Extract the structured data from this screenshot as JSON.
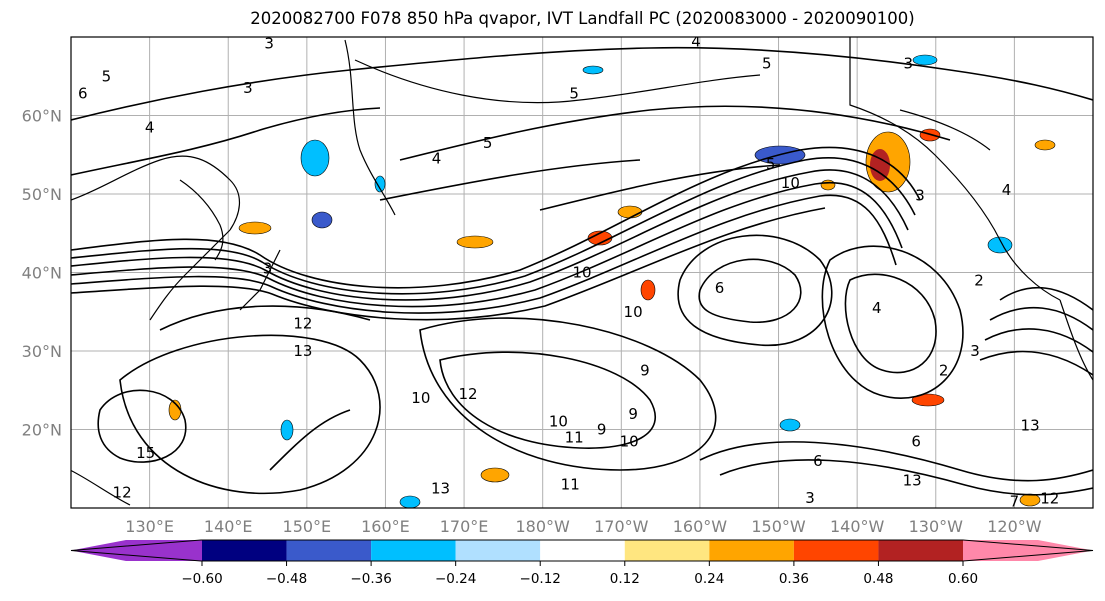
{
  "title": "2020082700 F078 850 hPa qvapor, IVT Landfall PC (2020083000 - 2020090100)",
  "map": {
    "lon_labels": [
      "130°E",
      "140°E",
      "150°E",
      "160°E",
      "170°E",
      "180°W",
      "170°W",
      "160°W",
      "150°W",
      "140°W",
      "130°W",
      "120°W"
    ],
    "lat_labels": [
      "60°N",
      "50°N",
      "40°N",
      "30°N",
      "20°N"
    ],
    "grid": true,
    "contour_labels": [
      {
        "text": "3",
        "lon": 145.2,
        "lat": 69.2
      },
      {
        "text": "4",
        "lon": -160.5,
        "lat": 69.4
      },
      {
        "text": "5",
        "lon": -151.5,
        "lat": 66.6
      },
      {
        "text": "3",
        "lon": -133.5,
        "lat": 66.6
      },
      {
        "text": "5",
        "lon": 124.5,
        "lat": 65.0
      },
      {
        "text": "6",
        "lon": 121.5,
        "lat": 62.8
      },
      {
        "text": "3",
        "lon": 142.5,
        "lat": 63.5
      },
      {
        "text": "5",
        "lon": -176,
        "lat": 62.8
      },
      {
        "text": "4",
        "lon": 130,
        "lat": 58.5
      },
      {
        "text": "5",
        "lon": 173,
        "lat": 56.5
      },
      {
        "text": "4",
        "lon": 166.5,
        "lat": 54.5
      },
      {
        "text": "5",
        "lon": -151,
        "lat": 53.8
      },
      {
        "text": "10",
        "lon": -148.5,
        "lat": 51.4
      },
      {
        "text": "3",
        "lon": -132,
        "lat": 49.8
      },
      {
        "text": "4",
        "lon": -121,
        "lat": 50.5
      },
      {
        "text": "3",
        "lon": 145,
        "lat": 40.5
      },
      {
        "text": "10",
        "lon": -175,
        "lat": 40.0
      },
      {
        "text": "12",
        "lon": 149.5,
        "lat": 33.5
      },
      {
        "text": "13",
        "lon": 149.5,
        "lat": 30.0
      },
      {
        "text": "12",
        "lon": 170.5,
        "lat": 24.5
      },
      {
        "text": "10",
        "lon": 164.5,
        "lat": 24.0
      },
      {
        "text": "10",
        "lon": -168.5,
        "lat": 35.0
      },
      {
        "text": "6",
        "lon": -157.5,
        "lat": 38.0
      },
      {
        "text": "4",
        "lon": -137.5,
        "lat": 35.5
      },
      {
        "text": "2",
        "lon": -124.5,
        "lat": 39.0
      },
      {
        "text": "3",
        "lon": -125,
        "lat": 30.0
      },
      {
        "text": "2",
        "lon": -129,
        "lat": 27.5
      },
      {
        "text": "9",
        "lon": -167,
        "lat": 27.5
      },
      {
        "text": "9",
        "lon": -168.5,
        "lat": 22.0
      },
      {
        "text": "9",
        "lon": -172.5,
        "lat": 20.0
      },
      {
        "text": "10",
        "lon": -169,
        "lat": 18.5
      },
      {
        "text": "10",
        "lon": -178,
        "lat": 21.0
      },
      {
        "text": "11",
        "lon": -176,
        "lat": 19.0
      },
      {
        "text": "6",
        "lon": -132.5,
        "lat": 18.5
      },
      {
        "text": "15",
        "lon": 129.5,
        "lat": 17.0
      },
      {
        "text": "12",
        "lon": 126.5,
        "lat": 12.0
      },
      {
        "text": "13",
        "lon": 167,
        "lat": 12.5
      },
      {
        "text": "11",
        "lon": -176.5,
        "lat": 13.0
      },
      {
        "text": "13",
        "lon": -133,
        "lat": 13.5
      },
      {
        "text": "6",
        "lon": -145,
        "lat": 16.0
      },
      {
        "text": "13",
        "lon": -118,
        "lat": 20.5
      },
      {
        "text": "7",
        "lon": -120,
        "lat": 10.8
      },
      {
        "text": "12",
        "lon": -115.5,
        "lat": 11.2
      },
      {
        "text": "3",
        "lon": -146,
        "lat": 11.3
      }
    ]
  },
  "colorbar": {
    "ticks": [
      "−0.60",
      "−0.48",
      "−0.36",
      "−0.24",
      "−0.12",
      "0.12",
      "0.24",
      "0.36",
      "0.48",
      "0.60"
    ],
    "levels": [
      -0.6,
      -0.48,
      -0.36,
      -0.24,
      -0.12,
      0.12,
      0.24,
      0.36,
      0.48,
      0.6
    ],
    "colors": {
      "below": "#9932cc",
      "bins": [
        "#000080",
        "#3a5acb",
        "#00bfff",
        "#b0e0ff",
        "#ffffff",
        "#ffe680",
        "#ffa500",
        "#ff4500",
        "#b22222"
      ],
      "above": "#ff88aa"
    }
  }
}
